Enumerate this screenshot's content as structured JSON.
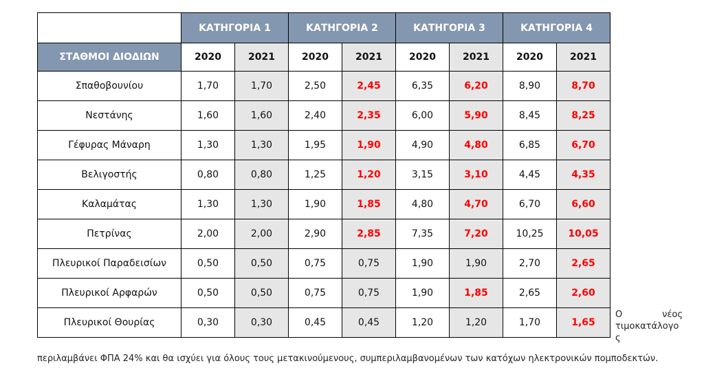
{
  "table": {
    "header_stations": "ΣΤΑΘΜΟΙ ΔΙΟΔΙΩΝ",
    "categories": [
      "ΚΑΤΗΓΟΡΙΑ 1",
      "ΚΑΤΗΓΟΡΙΑ 2",
      "ΚΑΤΗΓΟΡΙΑ 3",
      "ΚΑΤΗΓΟΡΙΑ 4"
    ],
    "years": [
      "2020",
      "2021",
      "2020",
      "2021",
      "2020",
      "2021",
      "2020",
      "2021"
    ],
    "rows": [
      {
        "name": "Σπαθοβουνίου",
        "values": [
          "1,70",
          "1,70",
          "2,50",
          "2,45",
          "6,35",
          "6,20",
          "8,90",
          "8,70"
        ]
      },
      {
        "name": "Νεστάνης",
        "values": [
          "1,60",
          "1,60",
          "2,40",
          "2,35",
          "6,00",
          "5,90",
          "8,45",
          "8,25"
        ]
      },
      {
        "name": "Γέφυρας Μάναρη",
        "values": [
          "1,30",
          "1,30",
          "1,95",
          "1,90",
          "4,90",
          "4,80",
          "6,85",
          "6,70"
        ]
      },
      {
        "name": "Βελιγοστής",
        "values": [
          "0,80",
          "0,80",
          "1,25",
          "1,20",
          "3,15",
          "3,10",
          "4,45",
          "4,35"
        ]
      },
      {
        "name": "Καλαμάτας",
        "values": [
          "1,30",
          "1,30",
          "1,90",
          "1,85",
          "4,80",
          "4,70",
          "6,70",
          "6,60"
        ]
      },
      {
        "name": "Πετρίνας",
        "values": [
          "2,00",
          "2,00",
          "2,90",
          "2,85",
          "7,35",
          "7,20",
          "10,25",
          "10,05"
        ]
      },
      {
        "name": "Πλευρικοί Παραδεισίων",
        "values": [
          "0,50",
          "0,50",
          "0,75",
          "0,75",
          "1,90",
          "1,90",
          "2,70",
          "2,65"
        ]
      },
      {
        "name": "Πλευρικοί Αρφαρών",
        "values": [
          "0,50",
          "0,50",
          "0,75",
          "0,75",
          "1,90",
          "1,85",
          "2,65",
          "2,60"
        ]
      },
      {
        "name": "Πλευρικοί Θουρίας",
        "values": [
          "0,30",
          "0,30",
          "0,45",
          "0,45",
          "1,20",
          "1,20",
          "1,70",
          "1,65"
        ]
      }
    ],
    "highlighted": [
      [
        false,
        false,
        false,
        true,
        false,
        true,
        false,
        true
      ],
      [
        false,
        false,
        false,
        true,
        false,
        true,
        false,
        true
      ],
      [
        false,
        false,
        false,
        true,
        false,
        true,
        false,
        true
      ],
      [
        false,
        false,
        false,
        true,
        false,
        true,
        false,
        true
      ],
      [
        false,
        false,
        false,
        true,
        false,
        true,
        false,
        true
      ],
      [
        false,
        false,
        false,
        true,
        false,
        true,
        false,
        true
      ],
      [
        false,
        false,
        false,
        false,
        false,
        false,
        false,
        true
      ],
      [
        false,
        false,
        false,
        false,
        false,
        true,
        false,
        true
      ],
      [
        false,
        false,
        false,
        false,
        false,
        false,
        false,
        true
      ]
    ]
  },
  "note": {
    "side_word_1": "Ο",
    "side_word_2": "νέος",
    "side_word_3": "τιμοκατάλογο",
    "side_word_4": "ς",
    "caption": "περιλαμβάνει ΦΠΑ 24% και θα ισχύει για όλους τους μετακινούμενους, συμπεριλαμβανομένων των κατόχων ηλεκτρονικών πομποδεκτών."
  },
  "colors": {
    "header_bg": "#8497b0",
    "alt_column_bg": "#e7e6e6",
    "highlight_text": "#ff0000"
  }
}
